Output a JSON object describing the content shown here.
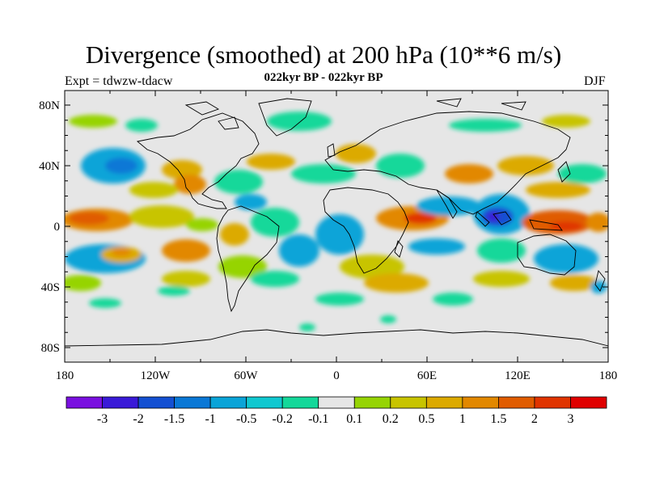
{
  "header": {
    "title": "Divergence (smoothed) at 200 hPa (10**6 m/s)",
    "experiment": "Expt = tdwzw-tdacw",
    "period": "022kyr BP - 022kyr BP",
    "season": "DJF"
  },
  "axes": {
    "x_ticks": [
      "180",
      "120W",
      "60W",
      "0",
      "60E",
      "120E",
      "180"
    ],
    "y_ticks": [
      "80N",
      "40N",
      "0",
      "40S",
      "80S"
    ]
  },
  "colorbar": {
    "labels": [
      "-3",
      "-2",
      "-1.5",
      "-1",
      "-0.5",
      "-0.2",
      "-0.1",
      "0.1",
      "0.2",
      "0.5",
      "1",
      "1.5",
      "2",
      "3"
    ],
    "colors": [
      "#7a10e0",
      "#3a1ad8",
      "#1450d2",
      "#0a78d6",
      "#0aa4d8",
      "#10c8d0",
      "#14d89a",
      "#e6e6e6",
      "#96d404",
      "#c8c400",
      "#dcaa00",
      "#e28800",
      "#e05c00",
      "#e03400",
      "#e00000"
    ]
  },
  "map": {
    "background_color": "#e6e6e6",
    "coastline_color": "#000000"
  }
}
